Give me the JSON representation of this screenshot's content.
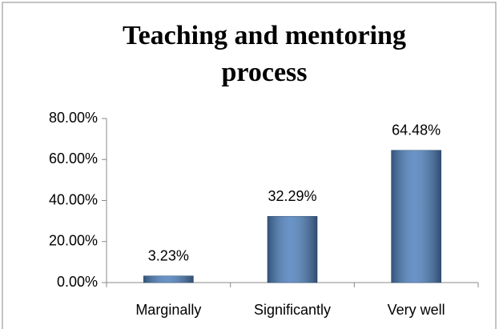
{
  "chart_data": {
    "type": "bar",
    "title": "Teaching and mentoring process",
    "categories": [
      "Marginally",
      "Significantly",
      "Very well"
    ],
    "values": [
      3.23,
      32.29,
      64.48
    ],
    "value_labels": [
      "3.23%",
      "32.29%",
      "64.48%"
    ],
    "color": "#4f81bd",
    "ylim": [
      0,
      80
    ],
    "yticks": [
      {
        "value": 0,
        "label": "0.00%"
      },
      {
        "value": 20,
        "label": "20.00%"
      },
      {
        "value": 40,
        "label": "40.00%"
      },
      {
        "value": 60,
        "label": "60.00%"
      },
      {
        "value": 80,
        "label": "80.00%"
      }
    ],
    "grid": false
  }
}
